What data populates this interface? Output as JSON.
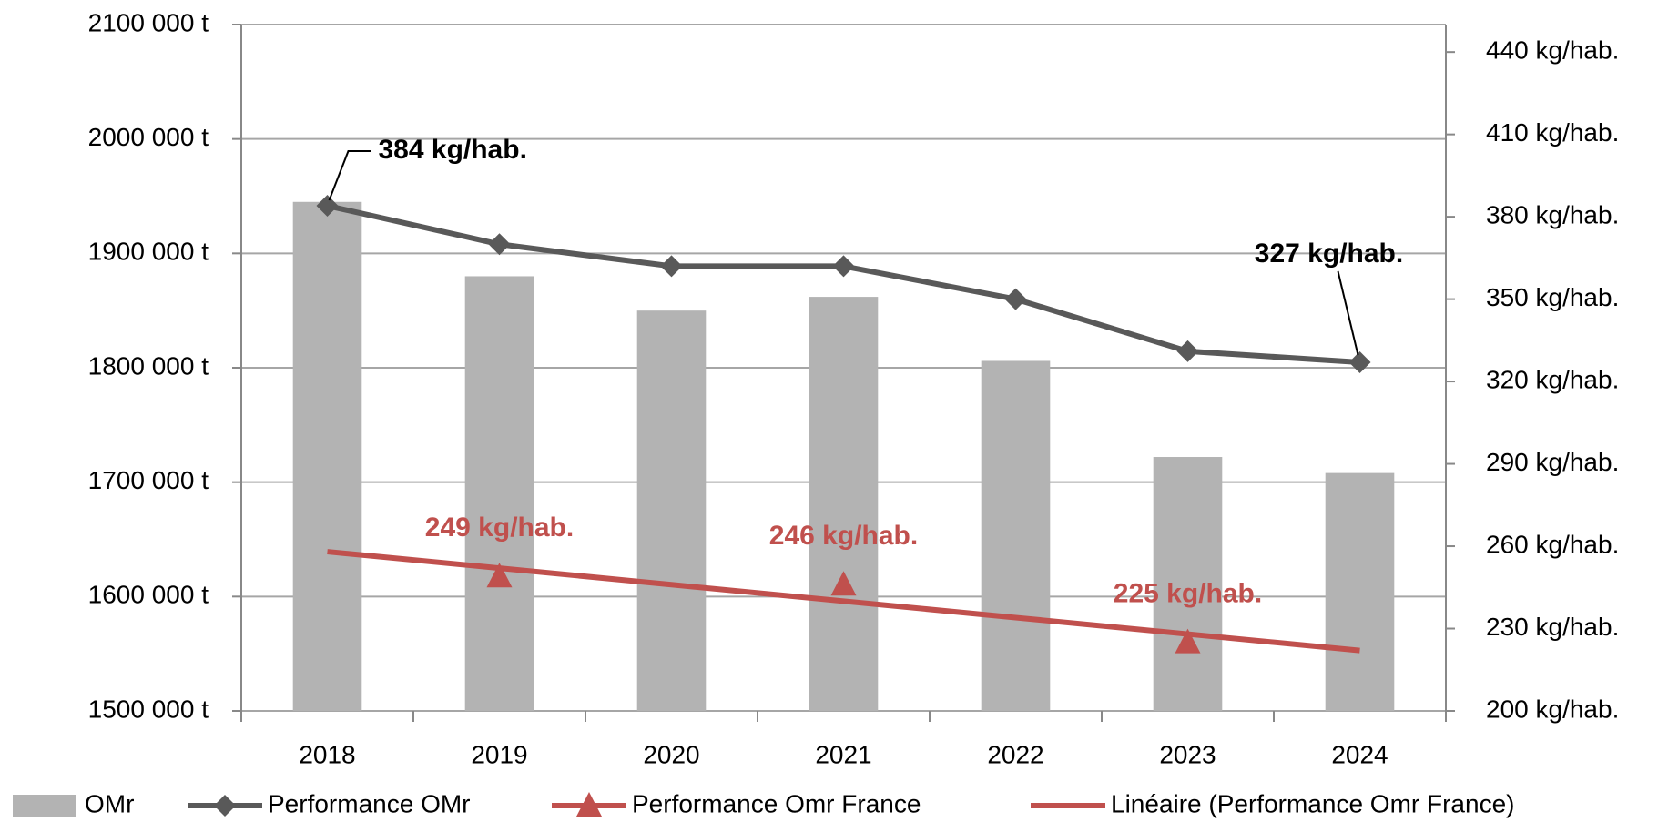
{
  "chart_data": {
    "type": "bar",
    "categories": [
      "2018",
      "2019",
      "2020",
      "2021",
      "2022",
      "2023",
      "2024"
    ],
    "ylim": [
      1500000,
      2100000
    ],
    "yticks": [
      {
        "value": 1500000,
        "label": "1500 000 t"
      },
      {
        "value": 1600000,
        "label": "1600 000 t"
      },
      {
        "value": 1700000,
        "label": "1700 000 t"
      },
      {
        "value": 1800000,
        "label": "1800 000 t"
      },
      {
        "value": 1900000,
        "label": "1900 000 t"
      },
      {
        "value": 2000000,
        "label": "2000 000 t"
      },
      {
        "value": 2100000,
        "label": "2100 000 t"
      }
    ],
    "y2lim": [
      200,
      450
    ],
    "y2ticks": [
      {
        "value": 200,
        "label": "200 kg/hab."
      },
      {
        "value": 230,
        "label": "230 kg/hab."
      },
      {
        "value": 260,
        "label": "260 kg/hab."
      },
      {
        "value": 290,
        "label": "290 kg/hab."
      },
      {
        "value": 320,
        "label": "320 kg/hab."
      },
      {
        "value": 350,
        "label": "350 kg/hab."
      },
      {
        "value": 380,
        "label": "380 kg/hab."
      },
      {
        "value": 410,
        "label": "410 kg/hab."
      },
      {
        "value": 440,
        "label": "440 kg/hab."
      }
    ],
    "grid": true,
    "legend": "bottom",
    "series": [
      {
        "name": "OMr",
        "type": "bar",
        "color": "#b3b3b3",
        "values": [
          1945000,
          1880000,
          1850000,
          1862000,
          1806000,
          1722000,
          1708000
        ]
      },
      {
        "name": "Performance OMr",
        "type": "line",
        "axis": "y2",
        "color": "#595959",
        "marker": "diamond",
        "line": true,
        "values": [
          384,
          370,
          362,
          362,
          350,
          331,
          327
        ],
        "value_labels": [
          "384 kg/hab.",
          null,
          null,
          null,
          null,
          null,
          "327 kg/hab."
        ]
      },
      {
        "name": "Performance Omr France",
        "type": "line",
        "axis": "y2",
        "color": "#c0504d",
        "marker": "triangle",
        "line": false,
        "values": [
          null,
          249,
          null,
          246,
          null,
          225,
          null
        ],
        "value_labels": [
          null,
          "249 kg/hab.",
          null,
          "246 kg/hab.",
          null,
          "225 kg/hab.",
          null
        ]
      },
      {
        "name": "Linéaire (Performance Omr France)",
        "type": "line",
        "axis": "y2",
        "color": "#c0504d",
        "marker": null,
        "line": true,
        "values": [
          258,
          252,
          246,
          240,
          234,
          228,
          222
        ]
      }
    ]
  }
}
